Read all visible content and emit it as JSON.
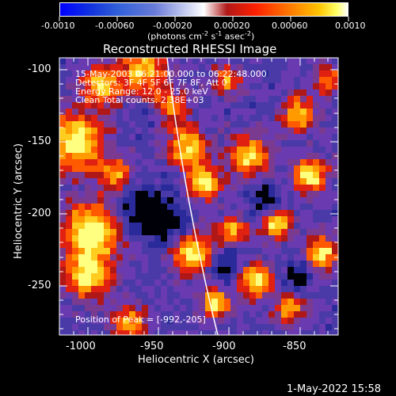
{
  "colorbar": {
    "tick_labels": [
      "-0.0010",
      "-0.00060",
      "-0.00020",
      "0.00020",
      "0.00060",
      "0.0010"
    ],
    "units_parts": [
      "(photons cm",
      "-2",
      " s",
      "-1",
      " asec",
      "-2",
      ")"
    ]
  },
  "title": "Reconstructed RHESSI Image",
  "info_lines": [
    "15-May-2003 06:21:00.000 to 06:22:48.000",
    "Detectors: 3F 4F 5F 6F 7F 8F, Att 0",
    "Energy Range: 12.0 - 25.0 keV",
    "Clean     Total counts: 2.38E+03"
  ],
  "peak_label": "Position of Peak = [-992,-205]",
  "axes": {
    "xlabel": "Heliocentric X (arcsec)",
    "ylabel": "Heliocentric Y (arcsec)",
    "xticks": [
      "-1000",
      "-950",
      "-900",
      "-850"
    ],
    "yticks": [
      "-100",
      "-150",
      "-200",
      "-250"
    ],
    "xlim": [
      -1015,
      -823
    ],
    "ylim": [
      -283,
      -93
    ]
  },
  "timestamp": "1-May-2022 15:58",
  "colors": {
    "limb": "#ffffff",
    "frame": "#ffffff",
    "background": "#000000"
  }
}
